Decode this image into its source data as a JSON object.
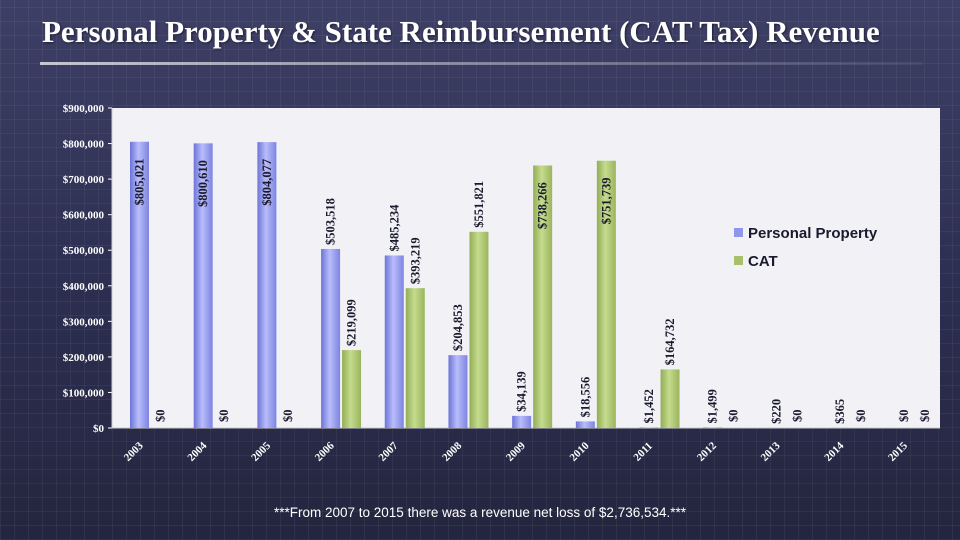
{
  "title": "Personal Property & State Reimbursement (CAT Tax) Revenue",
  "footnote": "***From 2007 to 2015 there was a revenue net loss of $2,736,534.***",
  "colors": {
    "personal_property": "#8f96ee",
    "cat": "#a7c06a",
    "plot_bg": "#f2f2f6",
    "text": "#ffffff"
  },
  "chart_data": {
    "type": "bar",
    "title": "Personal Property & State Reimbursement (CAT Tax) Revenue",
    "categories": [
      "2003",
      "2004",
      "2005",
      "2006",
      "2007",
      "2008",
      "2009",
      "2010",
      "2011",
      "2012",
      "2013",
      "2014",
      "2015"
    ],
    "series": [
      {
        "name": "Personal Property",
        "values": [
          805021,
          800610,
          804077,
          503518,
          485234,
          204853,
          34139,
          18556,
          1452,
          1499,
          220,
          365,
          0
        ],
        "labels": [
          "$805,021",
          "$800,610",
          "$804,077",
          "$503,518",
          "$485,234",
          "$204,853",
          "$34,139",
          "$18,556",
          "$1,452",
          "$1,499",
          "$220",
          "$365",
          "$0"
        ]
      },
      {
        "name": "CAT",
        "values": [
          0,
          0,
          0,
          219099,
          393219,
          551821,
          738266,
          751739,
          164732,
          0,
          0,
          0,
          0
        ],
        "labels": [
          "$0",
          "$0",
          "$0",
          "$219,099",
          "$393,219",
          "$551,821",
          "$738,266",
          "$751,739",
          "$164,732",
          "$0",
          "$0",
          "$0",
          "$0"
        ]
      }
    ],
    "ylim": [
      0,
      900000
    ],
    "yticks": [
      "$0",
      "$100,000",
      "$200,000",
      "$300,000",
      "$400,000",
      "$500,000",
      "$600,000",
      "$700,000",
      "$800,000",
      "$900,000"
    ],
    "legend_position": "right",
    "grid": false
  }
}
